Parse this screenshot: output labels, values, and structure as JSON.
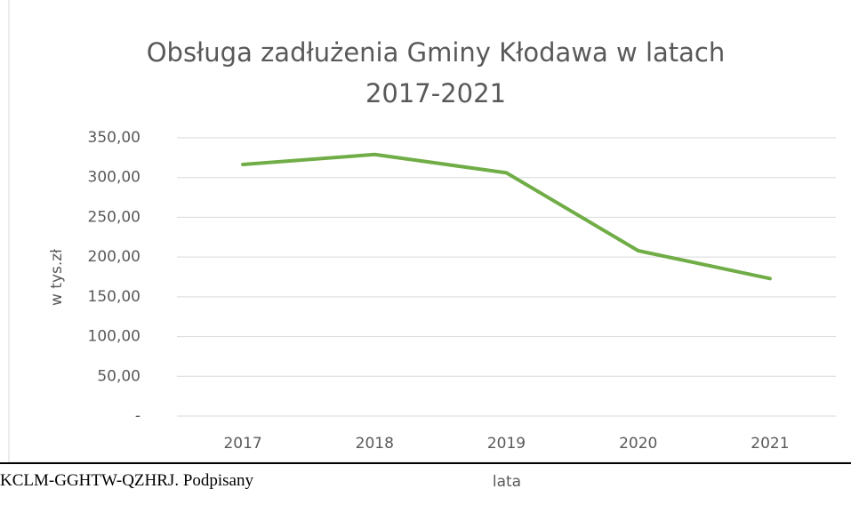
{
  "chart_data": {
    "type": "line",
    "title": "Obsługa zadłużenia Gminy Kłodawa w latach 2017-2021",
    "x_label": "lata",
    "y_label": "w tys.zł",
    "categories": [
      "2017",
      "2018",
      "2019",
      "2020",
      "2021"
    ],
    "series": [
      {
        "name": "Obsługa zadłużenia",
        "color": "#70ad47",
        "values": [
          316.5,
          329,
          306,
          208,
          173
        ]
      }
    ],
    "ylim": [
      0,
      350
    ],
    "yticks": [
      {
        "value": 0,
        "label": "-"
      },
      {
        "value": 50,
        "label": "50,00"
      },
      {
        "value": 100,
        "label": "100,00"
      },
      {
        "value": 150,
        "label": "150,00"
      },
      {
        "value": 200,
        "label": "200,00"
      },
      {
        "value": 250,
        "label": "250,00"
      },
      {
        "value": 300,
        "label": "300,00"
      },
      {
        "value": 350,
        "label": "350,00"
      }
    ],
    "grid": true
  },
  "footer": {
    "text": "KCLM-GGHTW-QZHRJ. Podpisany"
  }
}
